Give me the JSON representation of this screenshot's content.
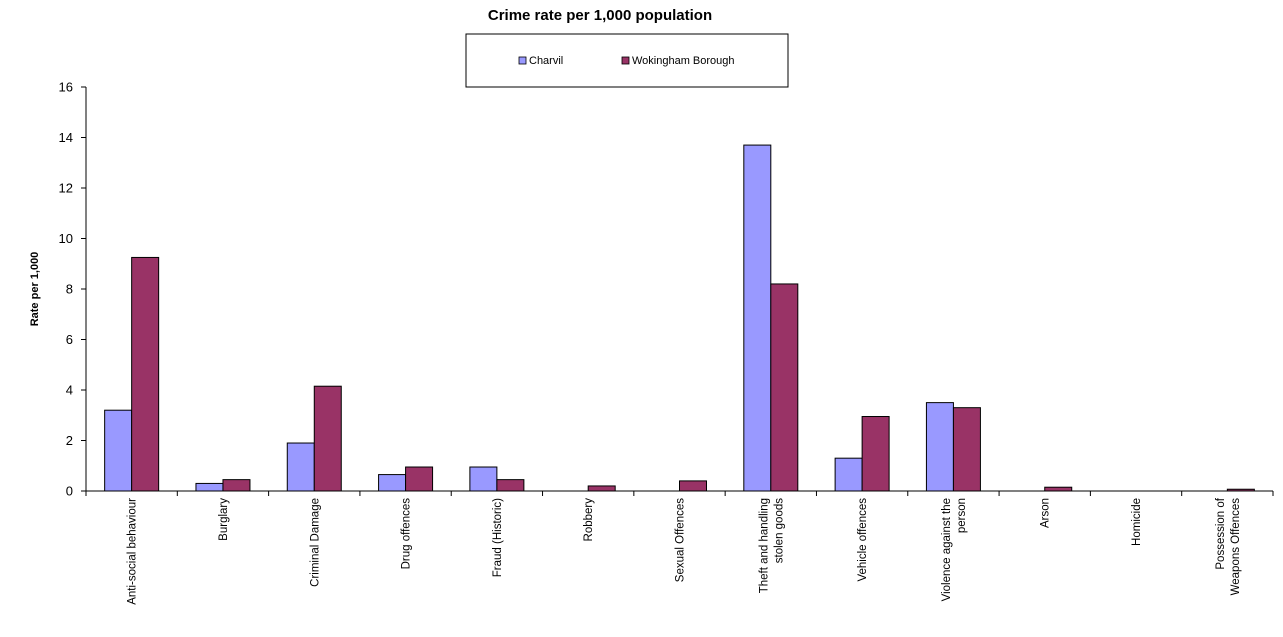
{
  "chart_data": {
    "type": "bar",
    "title": "Crime rate per 1,000 population",
    "xlabel": "",
    "ylabel": "Rate per 1,000",
    "ylim": [
      0,
      16
    ],
    "yticks": [
      0,
      2,
      4,
      6,
      8,
      10,
      12,
      14,
      16
    ],
    "grid": false,
    "legend_position": "top-center",
    "categories": [
      "Anti-social behaviour",
      "Burglary",
      "Criminal Damage",
      "Drug offences",
      "Fraud (Historic)",
      "Robbery",
      "Sexual Offences",
      "Theft and handling stolen goods",
      "Vehicle offences",
      "Violence against the person",
      "Arson",
      "Homicide",
      "Possession of Weapons Offences"
    ],
    "category_label_lines": [
      [
        "Anti-social behaviour"
      ],
      [
        "Burglary"
      ],
      [
        "Criminal Damage"
      ],
      [
        "Drug offences"
      ],
      [
        "Fraud (Historic)"
      ],
      [
        "Robbery"
      ],
      [
        "Sexual Offences"
      ],
      [
        "Theft and handling",
        "stolen goods"
      ],
      [
        "Vehicle offences"
      ],
      [
        "Violence against the",
        "person"
      ],
      [
        "Arson"
      ],
      [
        "Homicide"
      ],
      [
        "Possession of",
        "Weapons Offences"
      ]
    ],
    "series": [
      {
        "name": "Charvil",
        "color": "#9999FF",
        "values": [
          3.2,
          0.3,
          1.9,
          0.65,
          0.95,
          0,
          0,
          13.7,
          1.3,
          3.5,
          0,
          0,
          0
        ]
      },
      {
        "name": "Wokingham Borough",
        "color": "#993366",
        "values": [
          9.25,
          0.45,
          4.15,
          0.95,
          0.45,
          0.2,
          0.4,
          8.2,
          2.95,
          3.3,
          0.15,
          0,
          0.07
        ]
      }
    ]
  }
}
